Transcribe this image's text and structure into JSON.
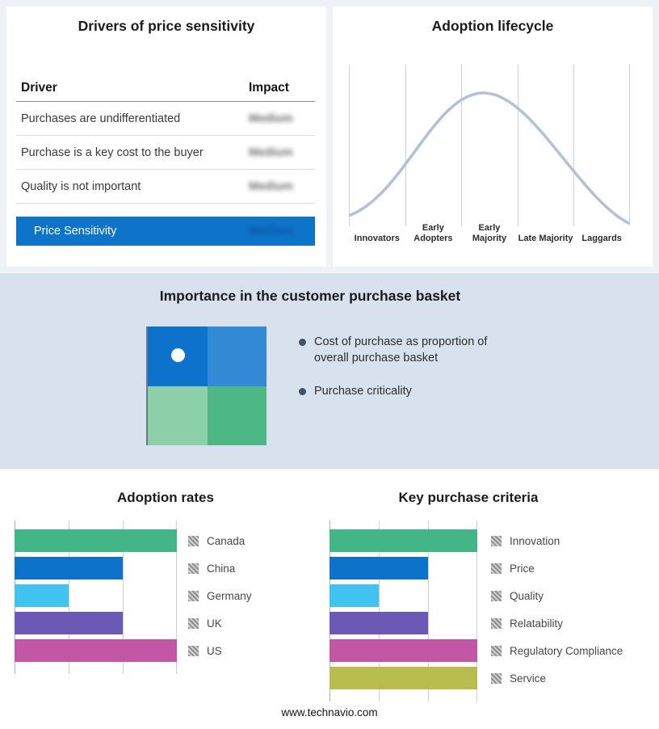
{
  "drivers_panel": {
    "title": "Drivers of price sensitivity",
    "columns": {
      "driver": "Driver",
      "impact": "Impact"
    },
    "rows": [
      {
        "driver": "Purchases are undifferentiated",
        "impact": "Medium"
      },
      {
        "driver": "Purchase is a key cost to the buyer",
        "impact": "Medium"
      },
      {
        "driver": "Quality is not important",
        "impact": "Medium"
      }
    ],
    "summary_row": {
      "label": "Price Sensitivity",
      "impact": "Medium",
      "bg": "#0e74c9"
    }
  },
  "lifecycle_panel": {
    "title": "Adoption lifecycle",
    "stages": [
      "Innovators",
      "Early Adopters",
      "Early Majority",
      "Late Majority",
      "Laggards"
    ],
    "curve_color": "#b1c1d8"
  },
  "basket_panel": {
    "title": "Importance in the customer purchase basket",
    "quadrants": [
      {
        "name": "top-left",
        "color": "#0d72cc",
        "marker": true
      },
      {
        "name": "top-right",
        "color": "#338ad4",
        "marker": false
      },
      {
        "name": "bottom-left",
        "color": "#8ccfa9",
        "marker": false
      },
      {
        "name": "bottom-right",
        "color": "#4db785",
        "marker": false
      }
    ],
    "bullets": [
      "Cost of purchase as proportion of overall purchase basket",
      "Purchase criticality"
    ]
  },
  "footer": {
    "url": "www.technavio.com"
  },
  "chart_data": [
    {
      "type": "bar",
      "orientation": "horizontal",
      "title": "Adoption rates",
      "categories": [
        "Canada",
        "China",
        "Germany",
        "UK",
        "US"
      ],
      "values": [
        3,
        2,
        1,
        2,
        3
      ],
      "xlim": [
        0,
        3
      ],
      "note": "no numeric axis labels shown; values estimated in gridline units",
      "colors": [
        "#43b687",
        "#0d73ca",
        "#41c3f2",
        "#6c59b6",
        "#c356a5"
      ],
      "legend_position": "right",
      "grid": true
    },
    {
      "type": "bar",
      "orientation": "horizontal",
      "title": "Key purchase criteria",
      "categories": [
        "Innovation",
        "Price",
        "Quality",
        "Relatability",
        "Regulatory Compliance",
        "Service"
      ],
      "values": [
        3,
        2,
        1,
        2,
        3,
        3
      ],
      "xlim": [
        0,
        3
      ],
      "note": "no numeric axis labels shown; values estimated in gridline units",
      "colors": [
        "#43b687",
        "#0d73ca",
        "#41c3f2",
        "#6c59b6",
        "#c356a5",
        "#b8bd4d"
      ],
      "legend_position": "right",
      "grid": true
    },
    {
      "type": "line",
      "title": "Adoption lifecycle",
      "x": [
        "Innovators",
        "Early Adopters",
        "Early Majority",
        "Late Majority",
        "Laggards"
      ],
      "y_relative": [
        0.05,
        0.55,
        1.0,
        0.55,
        0.03
      ],
      "description": "bell-shaped adoption curve peaking at Early Majority"
    }
  ]
}
